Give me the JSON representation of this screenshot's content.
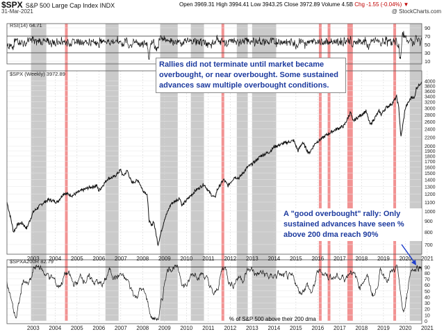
{
  "header": {
    "symbol": "$SPX",
    "name": "S&P 500 Large Cap Index INDX",
    "date": "31-Mar-2021",
    "open": "Open 3969.31",
    "high": "High 3994.41",
    "low": "Low 3943.25",
    "close": "Close 3972.89",
    "volume": "Volume 4.5B",
    "chg": "Chg -1.55 (-0.04%)",
    "chg_arrow": "▼",
    "credit": "@ StockCharts.com"
  },
  "annotations": {
    "note1": "Rallies did not terminate until market became overbought, or near overbought. Some sustained advances saw multiple overbought conditions.",
    "note2": "A \"good overbought\" rally: Only sustained advances have seen % above 200 dma reach 90%",
    "note3": "% of S&P 500 above their 200 dma"
  },
  "chart_data": [
    {
      "type": "line",
      "panel": "rsi",
      "series": [
        {
          "name": "RSI(14) 64.71",
          "last": 64.71
        }
      ],
      "yticks": [
        10,
        30,
        50,
        70,
        90
      ],
      "ylim": [
        10,
        90
      ],
      "reference_lines": [
        70,
        30
      ],
      "x_range": [
        2002.3,
        2021.25
      ]
    },
    {
      "type": "line",
      "panel": "price",
      "series": [
        {
          "name": "$SPX (Weekly) 3972.89",
          "last": 3972.89
        }
      ],
      "scale": "log",
      "ylim": [
        650,
        4200
      ],
      "yticks": [
        700,
        800,
        900,
        1000,
        1100,
        1200,
        1300,
        1400,
        1500,
        1600,
        1700,
        1800,
        1900,
        2000,
        2200,
        2400,
        2600,
        2800,
        3000,
        3200,
        3400,
        3600,
        3800,
        4000
      ],
      "xticks": [
        "2003",
        "2004",
        "2005",
        "2006",
        "2007",
        "2008",
        "2009",
        "2010",
        "2011",
        "2012",
        "2013",
        "2014",
        "2015",
        "2016",
        "2017",
        "2018",
        "2019",
        "2020",
        "2021"
      ],
      "x": [
        2002.3,
        2002.5,
        2002.6,
        2002.8,
        2003.0,
        2003.2,
        2003.5,
        2003.9,
        2004.2,
        2004.6,
        2004.9,
        2005.3,
        2005.6,
        2006.0,
        2006.4,
        2006.5,
        2006.9,
        2007.2,
        2007.5,
        2007.6,
        2007.8,
        2008.0,
        2008.3,
        2008.5,
        2008.7,
        2008.8,
        2008.9,
        2009.0,
        2009.2,
        2009.5,
        2009.8,
        2010.2,
        2010.3,
        2010.5,
        2010.9,
        2011.3,
        2011.6,
        2011.8,
        2011.9,
        2012.2,
        2012.4,
        2012.7,
        2012.9,
        2013.3,
        2013.5,
        2013.9,
        2014.3,
        2014.5,
        2014.9,
        2015.4,
        2015.6,
        2015.8,
        2016.1,
        2016.4,
        2016.7,
        2016.9,
        2017.3,
        2017.7,
        2018.0,
        2018.1,
        2018.3,
        2018.7,
        2018.9,
        2019.0,
        2019.3,
        2019.4,
        2019.6,
        2019.9,
        2020.1,
        2020.2,
        2020.3,
        2020.5,
        2020.8,
        2020.9,
        2021.0,
        2021.25
      ],
      "values": [
        1100,
        900,
        800,
        870,
        880,
        830,
        990,
        1080,
        1130,
        1100,
        1210,
        1180,
        1230,
        1280,
        1310,
        1240,
        1410,
        1440,
        1550,
        1450,
        1540,
        1350,
        1390,
        1250,
        1200,
        900,
        850,
        900,
        700,
        920,
        1080,
        1150,
        1060,
        1120,
        1240,
        1330,
        1200,
        1150,
        1250,
        1400,
        1310,
        1440,
        1420,
        1600,
        1650,
        1800,
        1880,
        1980,
        2050,
        2120,
        1900,
        2080,
        1850,
        2070,
        2170,
        2250,
        2380,
        2480,
        2870,
        2600,
        2700,
        2900,
        2500,
        2600,
        2900,
        2800,
        3000,
        3150,
        3380,
        3000,
        2190,
        3000,
        3400,
        3300,
        3700,
        3972.89
      ]
    },
    {
      "type": "line",
      "panel": "breadth",
      "series": [
        {
          "name": "$SPXA200R 82.79",
          "last": 82.79
        }
      ],
      "yticks": [
        0,
        10,
        20,
        30,
        40,
        50,
        60,
        70,
        80,
        90
      ],
      "ylim": [
        0,
        95
      ],
      "reference_lines": [
        90
      ],
      "xticks": [
        "2003",
        "2004",
        "2005",
        "2006",
        "2007",
        "2008",
        "2009",
        "2010",
        "2011",
        "2012",
        "2013",
        "2014",
        "2015",
        "2016",
        "2017",
        "2018",
        "2019",
        "2020",
        "2021"
      ]
    }
  ],
  "highlights": {
    "gray_bands": [
      [
        2003.4,
        2004.1
      ],
      [
        2006.8,
        2007.4
      ],
      [
        2009.3,
        2010.1
      ],
      [
        2010.7,
        2011.3
      ],
      [
        2012.8,
        2013.3
      ],
      [
        2013.5,
        2014.6
      ],
      [
        2020.7,
        2021.25
      ]
    ],
    "red_bands": [
      [
        2004.95,
        2005.05
      ],
      [
        2012.1,
        2012.2
      ],
      [
        2016.55,
        2016.65
      ],
      [
        2016.95,
        2017.05
      ],
      [
        2017.85,
        2018.1
      ],
      [
        2019.95,
        2020.05
      ]
    ]
  },
  "colors": {
    "price_line": "#111111",
    "gray_band": "#b8b8b8",
    "red_band": "#f08080",
    "annotation_text": "#1c3a9e",
    "arrow": "#1f3fcc"
  }
}
